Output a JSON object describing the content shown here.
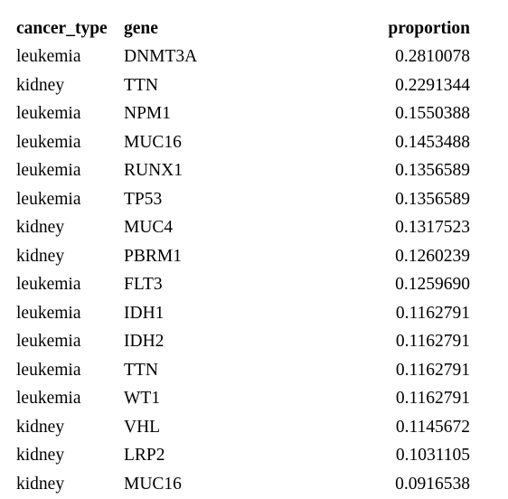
{
  "table": {
    "headers": {
      "cancer_type": "cancer_type",
      "gene": "gene",
      "proportion": "proportion"
    },
    "rows": [
      {
        "cancer_type": "leukemia",
        "gene": "DNMT3A",
        "proportion": "0.2810078"
      },
      {
        "cancer_type": "kidney",
        "gene": "TTN",
        "proportion": "0.2291344"
      },
      {
        "cancer_type": "leukemia",
        "gene": "NPM1",
        "proportion": "0.1550388"
      },
      {
        "cancer_type": "leukemia",
        "gene": "MUC16",
        "proportion": "0.1453488"
      },
      {
        "cancer_type": "leukemia",
        "gene": "RUNX1",
        "proportion": "0.1356589"
      },
      {
        "cancer_type": "leukemia",
        "gene": "TP53",
        "proportion": "0.1356589"
      },
      {
        "cancer_type": "kidney",
        "gene": "MUC4",
        "proportion": "0.1317523"
      },
      {
        "cancer_type": "kidney",
        "gene": "PBRM1",
        "proportion": "0.1260239"
      },
      {
        "cancer_type": "leukemia",
        "gene": "FLT3",
        "proportion": "0.1259690"
      },
      {
        "cancer_type": "leukemia",
        "gene": "IDH1",
        "proportion": "0.1162791"
      },
      {
        "cancer_type": "leukemia",
        "gene": "IDH2",
        "proportion": "0.1162791"
      },
      {
        "cancer_type": "leukemia",
        "gene": "TTN",
        "proportion": "0.1162791"
      },
      {
        "cancer_type": "leukemia",
        "gene": "WT1",
        "proportion": "0.1162791"
      },
      {
        "cancer_type": "kidney",
        "gene": "VHL",
        "proportion": "0.1145672"
      },
      {
        "cancer_type": "kidney",
        "gene": "LRP2",
        "proportion": "0.1031105"
      },
      {
        "cancer_type": "kidney",
        "gene": "MUC16",
        "proportion": "0.0916538"
      }
    ]
  }
}
